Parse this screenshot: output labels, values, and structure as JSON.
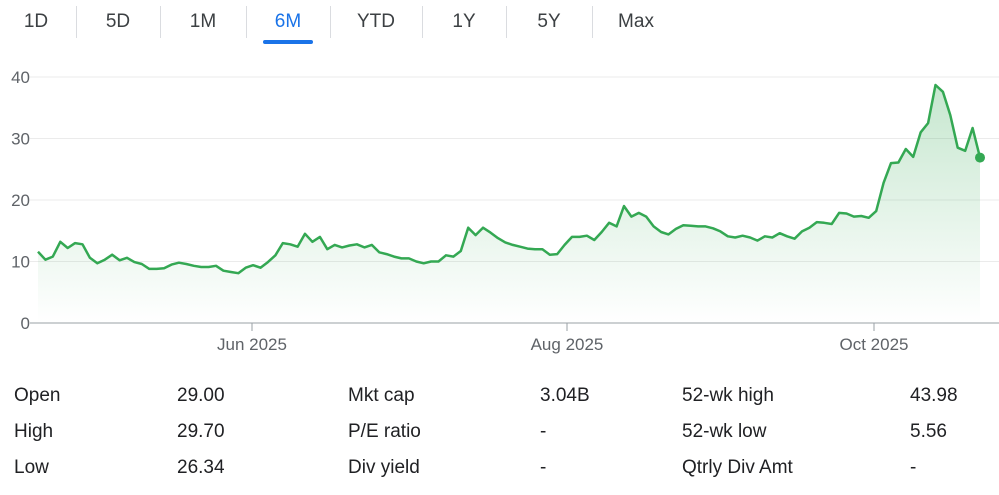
{
  "range_tabs": [
    {
      "label": "1D",
      "active": false
    },
    {
      "label": "5D",
      "active": false
    },
    {
      "label": "1M",
      "active": false
    },
    {
      "label": "6M",
      "active": true
    },
    {
      "label": "YTD",
      "active": false
    },
    {
      "label": "1Y",
      "active": false
    },
    {
      "label": "5Y",
      "active": false
    },
    {
      "label": "Max",
      "active": false
    }
  ],
  "chart_data": {
    "type": "area",
    "x_tick_labels": [
      "Jun 2025",
      "Aug 2025",
      "Oct 2025"
    ],
    "y_ticks": [
      0,
      10,
      20,
      30,
      40
    ],
    "ylim": [
      0,
      45
    ],
    "line_color": "#34a853",
    "fill_color": "#34a853",
    "grid": true,
    "series": [
      {
        "values": [
          11.6,
          10.3,
          10.8,
          13.2,
          12.2,
          13,
          12.8,
          10.6,
          9.7,
          10.3,
          11.1,
          10.2,
          10.6,
          9.9,
          9.6,
          8.8,
          8.8,
          8.9,
          9.5,
          9.8,
          9.6,
          9.3,
          9.1,
          9.1,
          9.3,
          8.5,
          8.3,
          8.1,
          9,
          9.4,
          9,
          9.9,
          11,
          13,
          12.8,
          12.4,
          14.5,
          13.2,
          14,
          12,
          12.7,
          12.3,
          12.6,
          12.8,
          12.3,
          12.7,
          11.5,
          11.2,
          10.8,
          10.5,
          10.5,
          10,
          9.7,
          10,
          10,
          11,
          10.8,
          11.7,
          15.5,
          14.3,
          15.5,
          14.7,
          13.8,
          13.1,
          12.7,
          12.4,
          12.1,
          12,
          12,
          11.1,
          11.2,
          12.7,
          14,
          14,
          14.2,
          13.5,
          14.8,
          16.3,
          15.7,
          19,
          17.3,
          17.9,
          17.3,
          15.7,
          14.8,
          14.4,
          15.3,
          15.9,
          15.8,
          15.7,
          15.7,
          15.4,
          14.9,
          14.1,
          13.9,
          14.2,
          13.9,
          13.4,
          14.1,
          13.9,
          14.6,
          14.1,
          13.7,
          14.9,
          15.5,
          16.4,
          16.3,
          16.1,
          17.9,
          17.8,
          17.3,
          17.4,
          17.1,
          18.2,
          22.8,
          26,
          26.1,
          28.3,
          27,
          31,
          32.5,
          38.7,
          37.6,
          33.8,
          28.5,
          28,
          31.7,
          26.9
        ]
      }
    ],
    "last_point_marker": true
  },
  "stats": [
    {
      "label": "Open",
      "value": "29.00"
    },
    {
      "label": "High",
      "value": "29.70"
    },
    {
      "label": "Low",
      "value": "26.34"
    },
    {
      "label": "Mkt cap",
      "value": "3.04B"
    },
    {
      "label": "P/E ratio",
      "value": "-"
    },
    {
      "label": "Div yield",
      "value": "-"
    },
    {
      "label": "52-wk high",
      "value": "43.98"
    },
    {
      "label": "52-wk low",
      "value": "5.56"
    },
    {
      "label": "Qtrly Div Amt",
      "value": "-"
    }
  ]
}
